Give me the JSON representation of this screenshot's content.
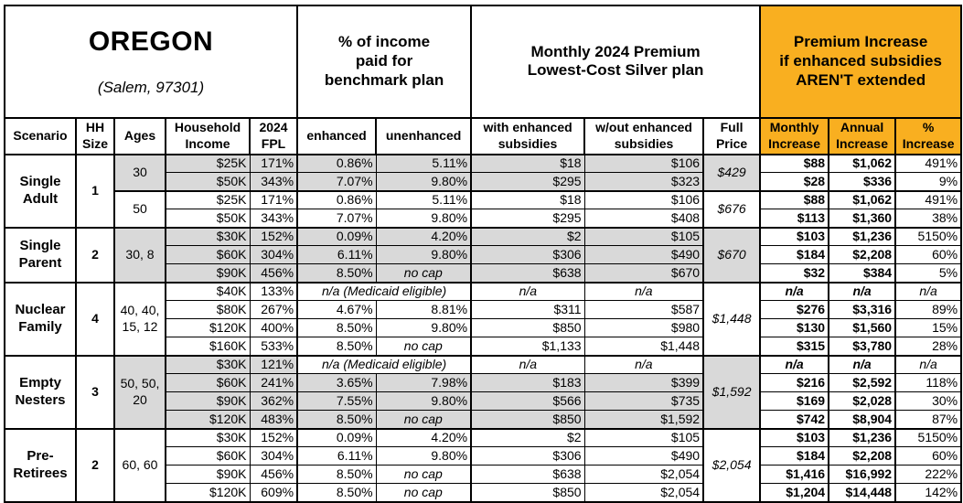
{
  "header": {
    "state": "OREGON",
    "location": "(Salem, 97301)",
    "groups": {
      "benchmark": "% of income\npaid for\nbenchmark plan",
      "premium": "Monthly 2024 Premium\nLowest-Cost Silver plan",
      "increase": "Premium Increase\nif enhanced subsidies\nAREN'T extended"
    },
    "columns": {
      "scenario": "Scenario",
      "hh_size": "HH\nSize",
      "ages": "Ages",
      "income": "Household\nIncome",
      "fpl": "2024\nFPL",
      "enhanced": "enhanced",
      "unenhanced": "unenhanced",
      "with_sub": "with enhanced\nsubsidies",
      "wout_sub": "w/out enhanced\nsubsidies",
      "full_price": "Full\nPrice",
      "monthly": "Monthly\nIncrease",
      "annual": "Annual\nIncrease",
      "pct": "%\nIncrease"
    }
  },
  "colors": {
    "accent_orange": "#F9AF20",
    "shade_gray": "#D9D9D9",
    "border_black": "#000000"
  },
  "groups": [
    {
      "scenario": "Single\nAdult",
      "hh_size": "1",
      "blocks": [
        {
          "ages": "30",
          "shaded": true,
          "full_price": "$429",
          "rows": [
            {
              "income": "$25K",
              "fpl": "171%",
              "enhanced": "0.86%",
              "unenhanced": "5.11%",
              "with_sub": "$18",
              "wout_sub": "$106",
              "monthly": "$88",
              "annual": "$1,062",
              "pct": "491%"
            },
            {
              "income": "$50K",
              "fpl": "343%",
              "enhanced": "7.07%",
              "unenhanced": "9.80%",
              "with_sub": "$295",
              "wout_sub": "$323",
              "monthly": "$28",
              "annual": "$336",
              "pct": "9%"
            }
          ]
        },
        {
          "ages": "50",
          "shaded": false,
          "full_price": "$676",
          "rows": [
            {
              "income": "$25K",
              "fpl": "171%",
              "enhanced": "0.86%",
              "unenhanced": "5.11%",
              "with_sub": "$18",
              "wout_sub": "$106",
              "monthly": "$88",
              "annual": "$1,062",
              "pct": "491%"
            },
            {
              "income": "$50K",
              "fpl": "343%",
              "enhanced": "7.07%",
              "unenhanced": "9.80%",
              "with_sub": "$295",
              "wout_sub": "$408",
              "monthly": "$113",
              "annual": "$1,360",
              "pct": "38%"
            }
          ]
        }
      ]
    },
    {
      "scenario": "Single\nParent",
      "hh_size": "2",
      "blocks": [
        {
          "ages": "30, 8",
          "shaded": true,
          "full_price": "$670",
          "rows": [
            {
              "income": "$30K",
              "fpl": "152%",
              "enhanced": "0.09%",
              "unenhanced": "4.20%",
              "with_sub": "$2",
              "wout_sub": "$105",
              "monthly": "$103",
              "annual": "$1,236",
              "pct": "5150%"
            },
            {
              "income": "$60K",
              "fpl": "304%",
              "enhanced": "6.11%",
              "unenhanced": "9.80%",
              "with_sub": "$306",
              "wout_sub": "$490",
              "monthly": "$184",
              "annual": "$2,208",
              "pct": "60%"
            },
            {
              "income": "$90K",
              "fpl": "456%",
              "enhanced": "8.50%",
              "unenhanced": "no cap",
              "with_sub": "$638",
              "wout_sub": "$670",
              "monthly": "$32",
              "annual": "$384",
              "pct": "5%"
            }
          ]
        }
      ]
    },
    {
      "scenario": "Nuclear\nFamily",
      "hh_size": "4",
      "blocks": [
        {
          "ages": "40, 40,\n15, 12",
          "shaded": false,
          "full_price": "$1,448",
          "rows": [
            {
              "income": "$40K",
              "fpl": "133%",
              "enhanced_merged": "n/a (Medicaid eligible)",
              "with_sub": "n/a",
              "wout_sub": "n/a",
              "monthly": "n/a",
              "annual": "n/a",
              "pct": "n/a"
            },
            {
              "income": "$80K",
              "fpl": "267%",
              "enhanced": "4.67%",
              "unenhanced": "8.81%",
              "with_sub": "$311",
              "wout_sub": "$587",
              "monthly": "$276",
              "annual": "$3,316",
              "pct": "89%"
            },
            {
              "income": "$120K",
              "fpl": "400%",
              "enhanced": "8.50%",
              "unenhanced": "9.80%",
              "with_sub": "$850",
              "wout_sub": "$980",
              "monthly": "$130",
              "annual": "$1,560",
              "pct": "15%"
            },
            {
              "income": "$160K",
              "fpl": "533%",
              "enhanced": "8.50%",
              "unenhanced": "no cap",
              "with_sub": "$1,133",
              "wout_sub": "$1,448",
              "monthly": "$315",
              "annual": "$3,780",
              "pct": "28%"
            }
          ]
        }
      ]
    },
    {
      "scenario": "Empty\nNesters",
      "hh_size": "3",
      "blocks": [
        {
          "ages": "50, 50,\n20",
          "shaded": true,
          "full_price": "$1,592",
          "rows": [
            {
              "income": "$30K",
              "fpl": "121%",
              "enhanced_merged": "n/a (Medicaid eligible)",
              "with_sub": "n/a",
              "wout_sub": "n/a",
              "monthly": "n/a",
              "annual": "n/a",
              "pct": "n/a"
            },
            {
              "income": "$60K",
              "fpl": "241%",
              "enhanced": "3.65%",
              "unenhanced": "7.98%",
              "with_sub": "$183",
              "wout_sub": "$399",
              "monthly": "$216",
              "annual": "$2,592",
              "pct": "118%"
            },
            {
              "income": "$90K",
              "fpl": "362%",
              "enhanced": "7.55%",
              "unenhanced": "9.80%",
              "with_sub": "$566",
              "wout_sub": "$735",
              "monthly": "$169",
              "annual": "$2,028",
              "pct": "30%"
            },
            {
              "income": "$120K",
              "fpl": "483%",
              "enhanced": "8.50%",
              "unenhanced": "no cap",
              "with_sub": "$850",
              "wout_sub": "$1,592",
              "monthly": "$742",
              "annual": "$8,904",
              "pct": "87%"
            }
          ]
        }
      ]
    },
    {
      "scenario": "Pre-\nRetirees",
      "hh_size": "2",
      "blocks": [
        {
          "ages": "60, 60",
          "shaded": false,
          "full_price": "$2,054",
          "rows": [
            {
              "income": "$30K",
              "fpl": "152%",
              "enhanced": "0.09%",
              "unenhanced": "4.20%",
              "with_sub": "$2",
              "wout_sub": "$105",
              "monthly": "$103",
              "annual": "$1,236",
              "pct": "5150%"
            },
            {
              "income": "$60K",
              "fpl": "304%",
              "enhanced": "6.11%",
              "unenhanced": "9.80%",
              "with_sub": "$306",
              "wout_sub": "$490",
              "monthly": "$184",
              "annual": "$2,208",
              "pct": "60%"
            },
            {
              "income": "$90K",
              "fpl": "456%",
              "enhanced": "8.50%",
              "unenhanced": "no cap",
              "with_sub": "$638",
              "wout_sub": "$2,054",
              "monthly": "$1,416",
              "annual": "$16,992",
              "pct": "222%"
            },
            {
              "income": "$120K",
              "fpl": "609%",
              "enhanced": "8.50%",
              "unenhanced": "no cap",
              "with_sub": "$850",
              "wout_sub": "$2,054",
              "monthly": "$1,204",
              "annual": "$14,448",
              "pct": "142%"
            }
          ]
        }
      ]
    }
  ]
}
